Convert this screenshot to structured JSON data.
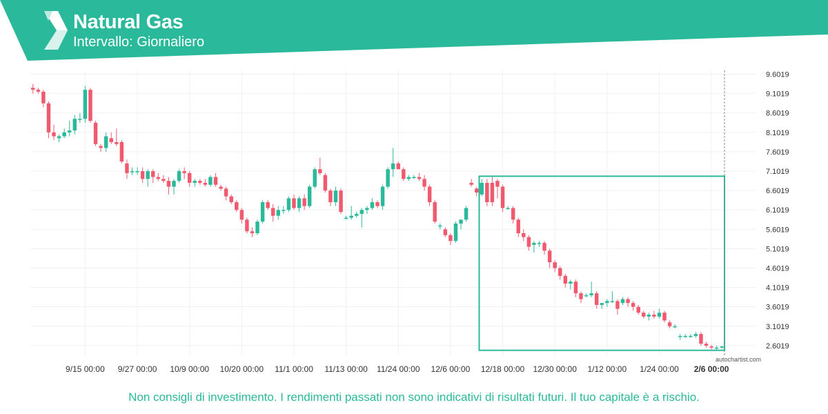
{
  "header": {
    "title": "Natural Gas",
    "subtitle": "Intervallo: Giornaliero",
    "logo_icon": "autochartist-logo-icon",
    "bg_color": "#2ab99a"
  },
  "footer": {
    "disclaimer": "Non consigli di investimento. I rendimenti passati non sono indicativi di risultati futuri. Il tuo capitale è a rischio.",
    "watermark": "autochartist.com"
  },
  "chart_data": {
    "type": "candlestick",
    "ylim": [
      2.35,
      9.7
    ],
    "y_ticks": [
      "9.6019",
      "9.1019",
      "8.6019",
      "8.1019",
      "7.6019",
      "7.1019",
      "6.6019",
      "6.1019",
      "5.6019",
      "5.1019",
      "4.6019",
      "4.1019",
      "3.6019",
      "3.1019",
      "2.6019"
    ],
    "x_ticks": [
      {
        "label": "9/15 00:00",
        "index": 10
      },
      {
        "label": "9/27 00:00",
        "index": 20
      },
      {
        "label": "10/9 00:00",
        "index": 30
      },
      {
        "label": "10/20 00:00",
        "index": 40
      },
      {
        "label": "11/1 00:00",
        "index": 50
      },
      {
        "label": "11/13 00:00",
        "index": 60
      },
      {
        "label": "11/24 00:00",
        "index": 70
      },
      {
        "label": "12/6 00:00",
        "index": 80
      },
      {
        "label": "12/18 00:00",
        "index": 90
      },
      {
        "label": "12/30 00:00",
        "index": 100
      },
      {
        "label": "1/12 00:00",
        "index": 110
      },
      {
        "label": "1/24 00:00",
        "index": 120
      },
      {
        "label": "2/6 00:00",
        "index": 130,
        "bold": true
      }
    ],
    "colors": {
      "up": "#2ab99a",
      "down": "#ef5a6f",
      "box": "#2ab99a",
      "grid": "#f1f1f1"
    },
    "candles": [
      [
        9.25,
        9.35,
        9.1,
        9.2
      ],
      [
        9.2,
        9.25,
        9.1,
        9.15
      ],
      [
        9.15,
        9.2,
        8.75,
        8.85
      ],
      [
        8.85,
        8.9,
        7.95,
        8.1
      ],
      [
        8.1,
        8.3,
        7.9,
        8.0
      ],
      [
        7.95,
        8.05,
        7.85,
        8.0
      ],
      [
        8.0,
        8.2,
        7.95,
        8.1
      ],
      [
        8.1,
        8.4,
        8.0,
        8.15
      ],
      [
        8.15,
        8.55,
        8.05,
        8.45
      ],
      [
        8.45,
        8.6,
        8.35,
        8.45
      ],
      [
        8.45,
        9.3,
        8.35,
        9.2
      ],
      [
        9.2,
        9.25,
        8.35,
        8.4
      ],
      [
        8.35,
        8.4,
        7.75,
        7.8
      ],
      [
        7.75,
        7.8,
        7.6,
        7.7
      ],
      [
        7.7,
        8.1,
        7.6,
        8.0
      ],
      [
        7.95,
        8.1,
        7.8,
        7.85
      ],
      [
        7.85,
        8.2,
        7.75,
        7.8
      ],
      [
        7.85,
        7.9,
        7.3,
        7.35
      ],
      [
        7.3,
        7.4,
        6.9,
        7.05
      ],
      [
        7.1,
        7.2,
        7.0,
        7.1
      ],
      [
        7.1,
        7.2,
        7.0,
        7.1
      ],
      [
        7.1,
        7.2,
        6.8,
        6.9
      ],
      [
        6.9,
        7.15,
        6.7,
        7.1
      ],
      [
        7.1,
        7.15,
        6.8,
        6.95
      ],
      [
        6.95,
        7.05,
        6.85,
        6.9
      ],
      [
        6.9,
        7.0,
        6.8,
        6.85
      ],
      [
        6.85,
        6.95,
        6.5,
        6.7
      ],
      [
        6.7,
        6.9,
        6.5,
        6.85
      ],
      [
        6.85,
        7.15,
        6.8,
        7.1
      ],
      [
        7.1,
        7.2,
        6.9,
        7.05
      ],
      [
        7.05,
        7.1,
        6.7,
        6.8
      ],
      [
        6.8,
        6.9,
        6.7,
        6.85
      ],
      [
        6.85,
        6.9,
        6.75,
        6.8
      ],
      [
        6.8,
        6.9,
        6.7,
        6.75
      ],
      [
        6.75,
        7.0,
        6.7,
        6.95
      ],
      [
        6.95,
        7.05,
        6.7,
        6.75
      ],
      [
        6.7,
        6.75,
        6.6,
        6.65
      ],
      [
        6.65,
        6.7,
        6.35,
        6.45
      ],
      [
        6.45,
        6.5,
        6.25,
        6.3
      ],
      [
        6.3,
        6.35,
        6.05,
        6.1
      ],
      [
        6.1,
        6.15,
        5.75,
        5.85
      ],
      [
        5.85,
        5.9,
        5.5,
        5.55
      ],
      [
        5.55,
        5.65,
        5.4,
        5.5
      ],
      [
        5.5,
        5.85,
        5.45,
        5.8
      ],
      [
        5.8,
        6.35,
        5.75,
        6.3
      ],
      [
        6.3,
        6.35,
        6.1,
        6.15
      ],
      [
        6.15,
        6.25,
        5.8,
        5.95
      ],
      [
        5.95,
        6.2,
        5.85,
        6.1
      ],
      [
        6.1,
        6.2,
        6.0,
        6.1
      ],
      [
        6.1,
        6.45,
        6.05,
        6.4
      ],
      [
        6.4,
        6.5,
        6.1,
        6.15
      ],
      [
        6.15,
        6.45,
        6.05,
        6.4
      ],
      [
        6.4,
        6.5,
        6.1,
        6.2
      ],
      [
        6.2,
        6.75,
        6.15,
        6.7
      ],
      [
        6.7,
        7.2,
        6.65,
        7.15
      ],
      [
        7.15,
        7.45,
        7.0,
        7.05
      ],
      [
        7.0,
        7.05,
        6.55,
        6.6
      ],
      [
        6.6,
        6.65,
        6.2,
        6.3
      ],
      [
        6.3,
        6.7,
        6.2,
        6.6
      ],
      [
        6.6,
        6.65,
        6.0,
        6.05
      ],
      [
        5.9,
        5.95,
        5.85,
        5.9
      ],
      [
        5.9,
        6.2,
        5.85,
        5.95
      ],
      [
        5.95,
        6.05,
        5.9,
        6.0
      ],
      [
        6.0,
        6.15,
        5.65,
        6.1
      ],
      [
        6.1,
        6.2,
        6.0,
        6.15
      ],
      [
        6.15,
        6.4,
        6.1,
        6.3
      ],
      [
        6.3,
        6.35,
        6.15,
        6.2
      ],
      [
        6.2,
        6.75,
        6.1,
        6.7
      ],
      [
        6.7,
        7.2,
        6.65,
        7.15
      ],
      [
        7.15,
        7.7,
        6.95,
        7.3
      ],
      [
        7.3,
        7.35,
        7.15,
        7.15
      ],
      [
        7.15,
        7.2,
        6.85,
        6.9
      ],
      [
        6.9,
        7.0,
        6.85,
        6.95
      ],
      [
        6.95,
        7.0,
        6.9,
        6.95
      ],
      [
        6.95,
        7.05,
        6.85,
        6.9
      ],
      [
        6.9,
        7.0,
        6.6,
        6.7
      ],
      [
        6.7,
        6.75,
        6.2,
        6.3
      ],
      [
        6.3,
        6.35,
        5.75,
        5.8
      ],
      [
        5.7,
        5.75,
        5.6,
        5.7
      ],
      [
        5.6,
        5.65,
        5.4,
        5.45
      ],
      [
        5.45,
        5.5,
        5.2,
        5.3
      ],
      [
        5.3,
        5.8,
        5.25,
        5.75
      ],
      [
        5.75,
        5.8,
        5.6,
        5.85
      ],
      [
        5.85,
        6.2,
        5.8,
        6.15
      ],
      [
        6.8,
        6.9,
        6.7,
        6.75
      ],
      [
        6.65,
        6.7,
        6.45,
        6.55
      ],
      [
        6.5,
        6.9,
        6.45,
        6.8
      ],
      [
        6.8,
        6.9,
        6.2,
        6.3
      ],
      [
        6.8,
        6.95,
        6.2,
        6.3
      ],
      [
        6.85,
        6.9,
        6.4,
        6.7
      ],
      [
        6.7,
        6.75,
        6.05,
        6.15
      ],
      [
        6.15,
        6.2,
        6.1,
        6.15
      ],
      [
        6.15,
        6.2,
        5.75,
        5.85
      ],
      [
        5.85,
        5.9,
        5.4,
        5.5
      ],
      [
        5.5,
        5.6,
        5.3,
        5.4
      ],
      [
        5.4,
        5.45,
        5.05,
        5.15
      ],
      [
        5.2,
        5.3,
        5.0,
        5.25
      ],
      [
        5.25,
        5.3,
        5.15,
        5.25
      ],
      [
        5.25,
        5.3,
        4.95,
        5.05
      ],
      [
        5.05,
        5.1,
        4.6,
        4.75
      ],
      [
        4.75,
        4.8,
        4.5,
        4.6
      ],
      [
        4.6,
        4.65,
        4.3,
        4.4
      ],
      [
        4.4,
        4.45,
        4.1,
        4.2
      ],
      [
        4.2,
        4.3,
        4.05,
        4.25
      ],
      [
        4.25,
        4.3,
        3.85,
        3.95
      ],
      [
        3.95,
        4.0,
        3.7,
        3.8
      ],
      [
        3.9,
        3.95,
        3.85,
        3.9
      ],
      [
        3.9,
        4.25,
        3.85,
        3.95
      ],
      [
        3.95,
        4.0,
        3.55,
        3.65
      ],
      [
        3.65,
        3.7,
        3.55,
        3.7
      ],
      [
        3.7,
        3.8,
        3.6,
        3.75
      ],
      [
        3.75,
        4.0,
        3.7,
        3.75
      ],
      [
        3.75,
        3.8,
        3.4,
        3.55
      ],
      [
        3.7,
        3.85,
        3.65,
        3.8
      ],
      [
        3.8,
        3.85,
        3.6,
        3.7
      ],
      [
        3.7,
        3.75,
        3.5,
        3.6
      ],
      [
        3.6,
        3.65,
        3.4,
        3.45
      ],
      [
        3.45,
        3.5,
        3.3,
        3.35
      ],
      [
        3.35,
        3.45,
        3.25,
        3.4
      ],
      [
        3.4,
        3.5,
        3.3,
        3.35
      ],
      [
        3.35,
        3.55,
        3.3,
        3.45
      ],
      [
        3.45,
        3.5,
        3.2,
        3.25
      ],
      [
        3.2,
        3.25,
        3.05,
        3.1
      ],
      [
        3.1,
        3.15,
        3.05,
        3.1
      ],
      [
        2.85,
        2.9,
        2.75,
        2.85
      ],
      [
        2.85,
        2.9,
        2.8,
        2.85
      ],
      [
        2.85,
        2.9,
        2.8,
        2.85
      ],
      [
        2.85,
        2.95,
        2.8,
        2.9
      ],
      [
        2.9,
        2.95,
        2.6,
        2.65
      ],
      [
        2.65,
        2.7,
        2.55,
        2.6
      ],
      [
        2.58,
        2.62,
        2.5,
        2.55
      ],
      [
        2.55,
        2.6,
        2.48,
        2.55
      ],
      [
        2.55,
        2.6,
        2.52,
        2.58
      ]
    ],
    "pattern_box": {
      "start_index": 86,
      "end_index": 132,
      "top": 6.97,
      "bottom": 2.48
    }
  }
}
